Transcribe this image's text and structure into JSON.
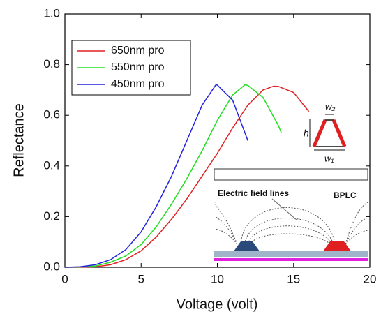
{
  "chart_data": {
    "type": "line",
    "x_label": "Voltage (volt)",
    "y_label": "Reflectance",
    "xlim": [
      0,
      20
    ],
    "xticks": [
      0,
      5,
      10,
      15,
      20
    ],
    "ylim": [
      0,
      1
    ],
    "yticks": [
      {
        "value": 0,
        "label": "0.0"
      },
      0.2,
      0.4,
      0.6,
      0.8,
      {
        "value": 1,
        "label": "1.0"
      }
    ],
    "legend": "upper left",
    "series": [
      {
        "name": "650nm pro",
        "color": "#e02020",
        "x": [
          0,
          1,
          2,
          3,
          4,
          5,
          6,
          7,
          8,
          9,
          10,
          11,
          12,
          13,
          13.7,
          14,
          15,
          16
        ],
        "values": [
          0,
          0,
          0.002,
          0.01,
          0.03,
          0.065,
          0.12,
          0.19,
          0.27,
          0.36,
          0.45,
          0.55,
          0.64,
          0.7,
          0.715,
          0.714,
          0.69,
          0.615
        ]
      },
      {
        "name": "550nm pro",
        "color": "#22dd22",
        "x": [
          0,
          1,
          2,
          3,
          4,
          5,
          6,
          7,
          8,
          9,
          10,
          11,
          11.8,
          12,
          13,
          14,
          14.2
        ],
        "values": [
          0,
          0.001,
          0.005,
          0.02,
          0.045,
          0.09,
          0.16,
          0.25,
          0.35,
          0.46,
          0.58,
          0.68,
          0.72,
          0.718,
          0.67,
          0.56,
          0.53
        ]
      },
      {
        "name": "450nm pro",
        "color": "#2222dd",
        "x": [
          0,
          1,
          2,
          3,
          4,
          5,
          6,
          7,
          8,
          9,
          9.9,
          10,
          11,
          12
        ],
        "values": [
          0,
          0.002,
          0.01,
          0.03,
          0.07,
          0.14,
          0.24,
          0.36,
          0.5,
          0.64,
          0.72,
          0.719,
          0.66,
          0.5
        ]
      }
    ],
    "annotations": [
      "Electric field lines",
      "BPLC",
      "h",
      "w₂",
      "w₁"
    ]
  }
}
